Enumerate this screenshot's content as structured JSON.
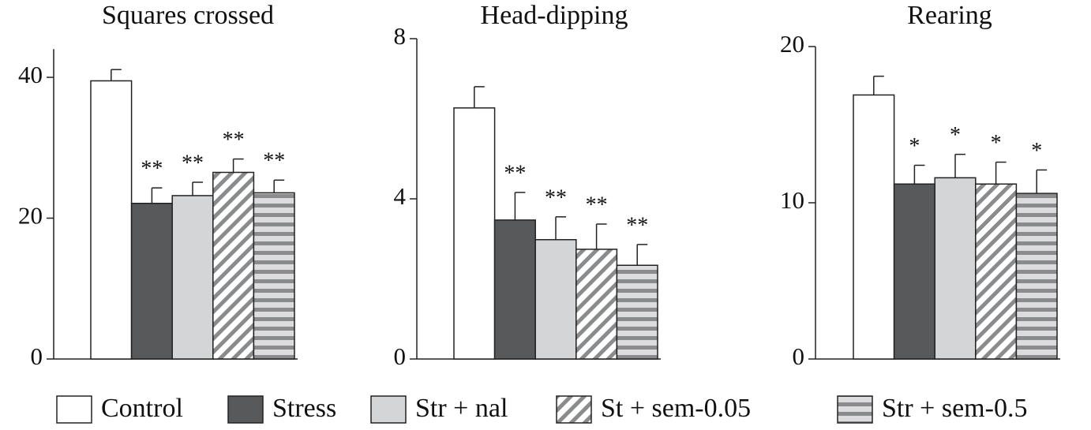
{
  "chart_data": [
    {
      "type": "bar",
      "title": "Squares crossed",
      "ylim": [
        0,
        44
      ],
      "yticks": [
        0,
        20,
        40
      ],
      "values": [
        39.5,
        22.1,
        23.2,
        26.5,
        23.6
      ],
      "errors": [
        1.6,
        2.2,
        1.9,
        1.9,
        1.8
      ],
      "annotations": [
        null,
        "**",
        "**",
        "**",
        "**"
      ]
    },
    {
      "type": "bar",
      "title": "Head-dipping",
      "ylim": [
        0,
        8
      ],
      "yticks": [
        0,
        4,
        8
      ],
      "values": [
        6.27,
        3.47,
        2.98,
        2.74,
        2.34
      ],
      "errors": [
        0.53,
        0.69,
        0.57,
        0.63,
        0.52
      ],
      "annotations": [
        null,
        "**",
        "**",
        "**",
        "**"
      ]
    },
    {
      "type": "bar",
      "title": "Rearing",
      "ylim": [
        0,
        20
      ],
      "yticks": [
        0,
        10,
        20
      ],
      "values": [
        16.9,
        11.2,
        11.6,
        11.2,
        10.6
      ],
      "errors": [
        1.2,
        1.2,
        1.5,
        1.4,
        1.5
      ],
      "annotations": [
        null,
        "*",
        "*",
        "*",
        "*"
      ]
    }
  ],
  "legend": [
    {
      "name": "Control",
      "color": "#ffffff",
      "pattern": "solid"
    },
    {
      "name": "Stress",
      "color": "#58595b",
      "pattern": "solid"
    },
    {
      "name": "Str + nal",
      "color": "#d4d5d7",
      "pattern": "solid"
    },
    {
      "name": "St + sem-0.05",
      "color": "#8a8b8d",
      "pattern": "diagonal"
    },
    {
      "name": "Str + sem-0.5",
      "color": "#8a8b8d",
      "pattern": "horizontal"
    }
  ]
}
